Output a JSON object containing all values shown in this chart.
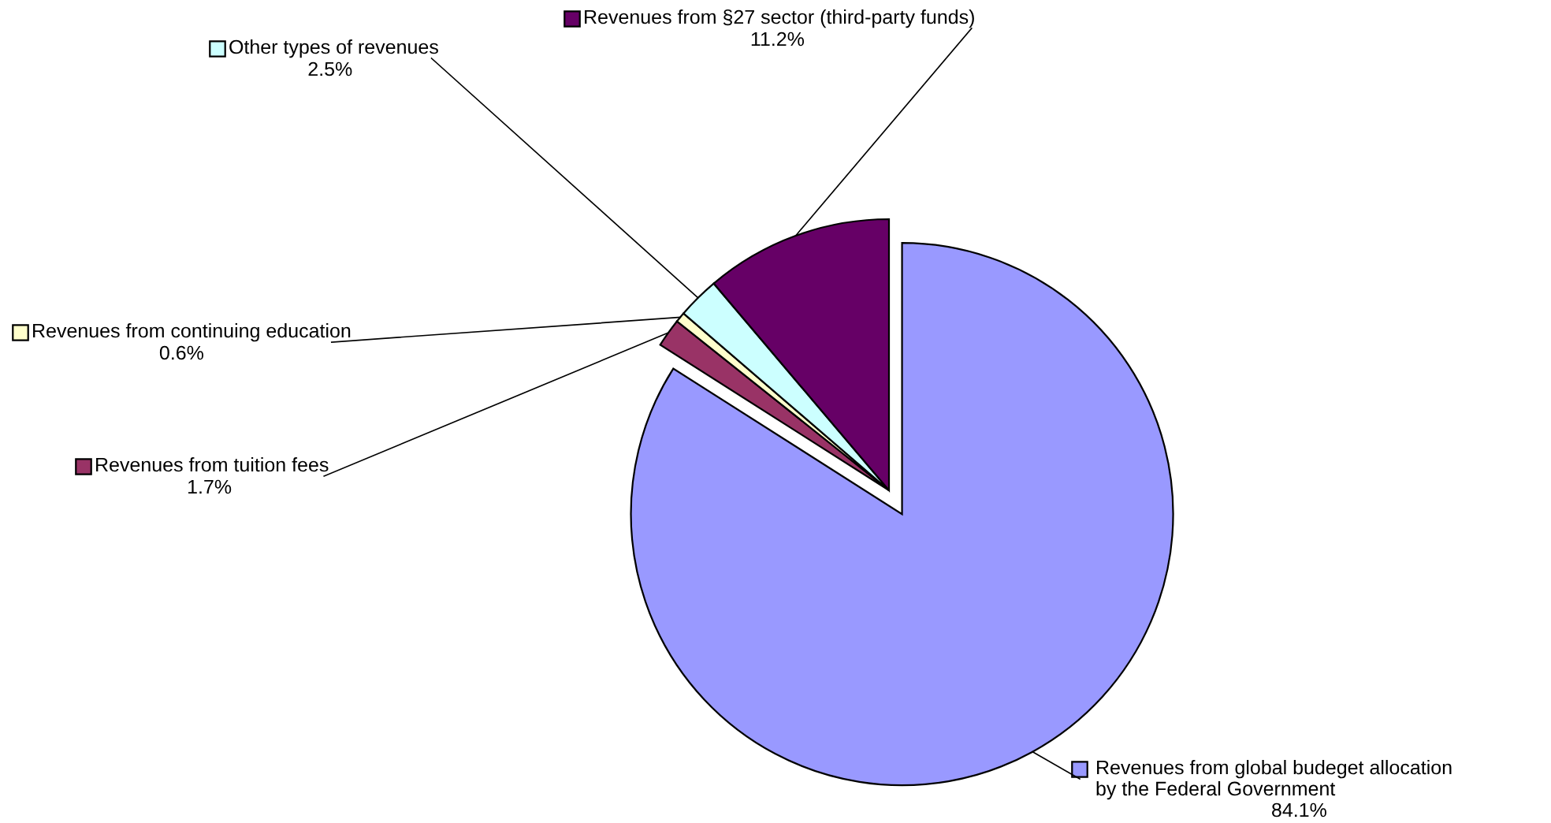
{
  "chart_data": {
    "type": "pie",
    "categories": [
      "Revenues from global budeget allocation\nby the Federal Government",
      "Revenues from tuition fees",
      "Revenues from continuing education",
      "Other types of revenues",
      "Revenues from §27 sector (third-party funds)"
    ],
    "values": [
      84.1,
      1.7,
      0.6,
      2.5,
      11.2
    ],
    "colors": [
      "#9999ff",
      "#993366",
      "#ffffcc",
      "#ccffff",
      "#660066"
    ],
    "value_labels": [
      "84.1%",
      "1.7%",
      "0.6%",
      "2.5%",
      "11.2%"
    ],
    "legend": "top left"
  }
}
